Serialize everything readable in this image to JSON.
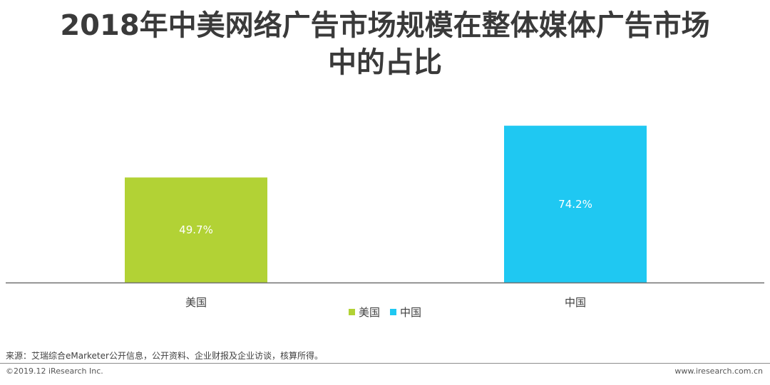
{
  "title_lines": [
    "2018年中美网络广告市场规模在整体媒体广告市场",
    "中的占比"
  ],
  "chart_data": {
    "type": "bar",
    "title": "2018年中美网络广告市场规模在整体媒体广告市场中的占比",
    "categories": [
      "美国",
      "中国"
    ],
    "series": [
      {
        "name": "美国",
        "values": [
          49.7,
          null
        ],
        "color": "#b2d235"
      },
      {
        "name": "中国",
        "values": [
          null,
          74.2
        ],
        "color": "#1fc8f2"
      }
    ],
    "data_labels": [
      "49.7%",
      "74.2%"
    ],
    "unit": "%",
    "ylim": [
      0,
      100
    ],
    "grid": false,
    "legend": "bottom"
  },
  "legend": [
    {
      "label": "美国",
      "color": "#b2d235"
    },
    {
      "label": "中国",
      "color": "#1fc8f2"
    }
  ],
  "source": "来源：艾瑞综合eMarketer公开信息，公开资料、企业财报及企业访谈，核算所得。",
  "copyright": "©2019.12 iResearch Inc.",
  "website": "www.iresearch.com.cn"
}
